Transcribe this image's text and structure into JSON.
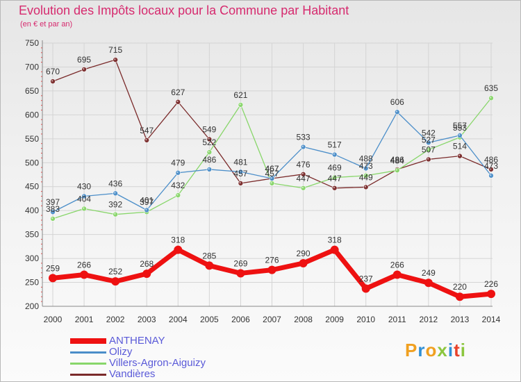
{
  "header": {
    "title": "Evolution des Impôts locaux pour la Commune par Habitant",
    "subtitle": "(en € et par an)"
  },
  "brand": {
    "text": "Proxiti",
    "colors": [
      "#f0a020",
      "#2f8fd5",
      "#f0a020",
      "#8cc63f",
      "#2f8fd5",
      "#e8422a",
      "#8cc63f"
    ]
  },
  "chart_data": {
    "type": "line",
    "title": "Evolution des Impôts locaux pour la Commune par Habitant",
    "subtitle": "(en € et par an)",
    "x": [
      "2000",
      "2001",
      "2002",
      "2003",
      "2004",
      "2005",
      "2006",
      "2007",
      "2008",
      "2009",
      "2010",
      "2011",
      "2012",
      "2013",
      "2014"
    ],
    "ylim": [
      200,
      750
    ],
    "yticks": [
      200,
      250,
      300,
      350,
      400,
      450,
      500,
      550,
      600,
      650,
      700,
      750
    ],
    "grid": true,
    "legend": "bottom-left",
    "series": [
      {
        "name": "ANTHENAY",
        "color": "#ee1111",
        "values": [
          259,
          266,
          252,
          268,
          318,
          285,
          269,
          276,
          290,
          318,
          237,
          266,
          249,
          220,
          226
        ]
      },
      {
        "name": "Olizy",
        "color": "#4b8ec9",
        "values": [
          397,
          430,
          436,
          401,
          479,
          486,
          481,
          467,
          533,
          517,
          488,
          606,
          542,
          557,
          473
        ]
      },
      {
        "name": "Villers-Agron-Aiguizy",
        "color": "#88d66a",
        "values": [
          383,
          404,
          392,
          397,
          432,
          522,
          621,
          457,
          447,
          469,
          473,
          484,
          527,
          553,
          635
        ]
      },
      {
        "name": "Vandières",
        "color": "#7a2a2a",
        "values": [
          670,
          695,
          715,
          547,
          627,
          549,
          457,
          467,
          476,
          447,
          449,
          486,
          507,
          514,
          486
        ]
      }
    ]
  }
}
